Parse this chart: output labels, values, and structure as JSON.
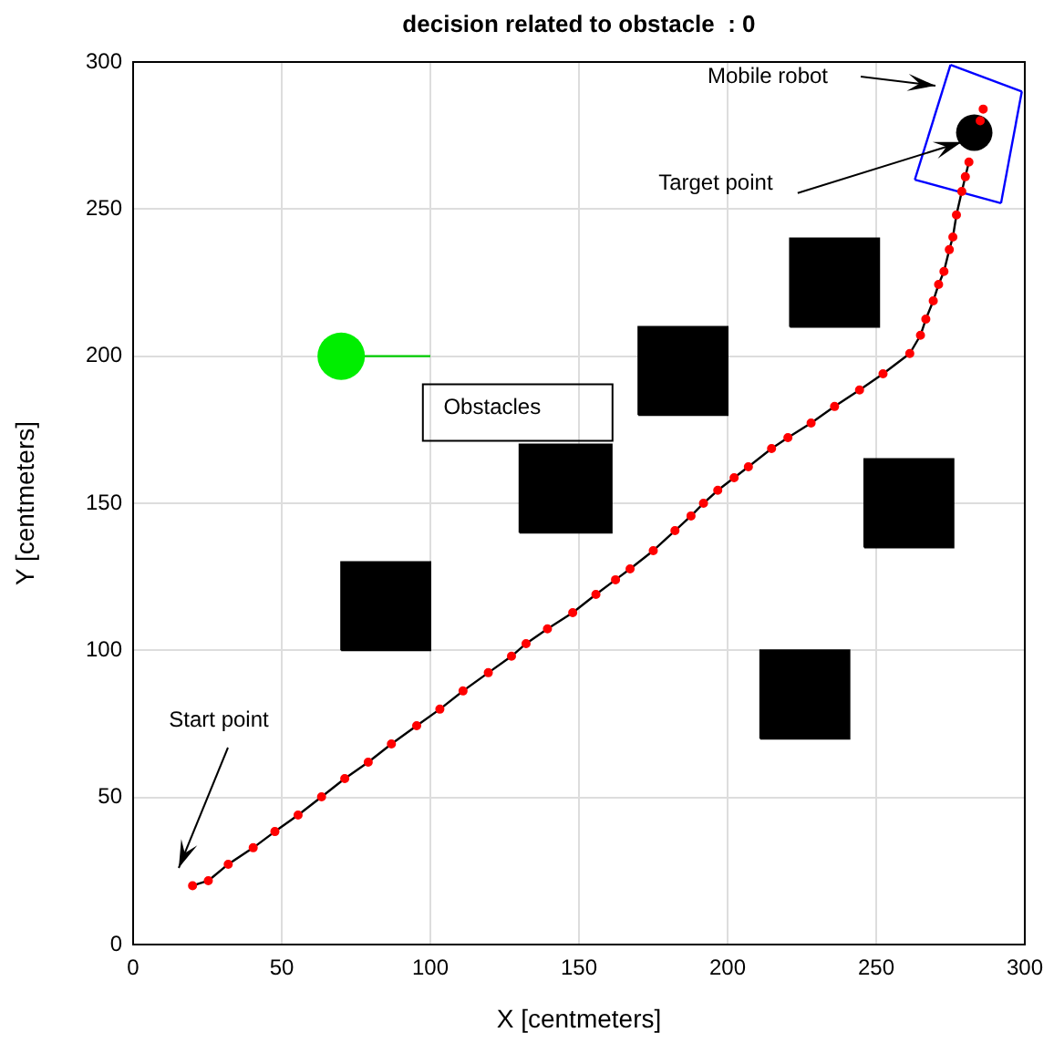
{
  "chart_data": {
    "type": "line",
    "title": "decision related to obstacle  : 0",
    "xlabel": "X [centmeters]",
    "ylabel": "Y [centmeters]",
    "xlim": [
      0,
      300
    ],
    "ylim": [
      0,
      300
    ],
    "xticks": [
      0,
      50,
      100,
      150,
      200,
      250,
      300
    ],
    "yticks": [
      0,
      50,
      100,
      150,
      200,
      250,
      300
    ],
    "grid": true,
    "legend": false,
    "series": [
      {
        "type": "area",
        "color": "#000000",
        "x": [
          70,
          100,
          100,
          70,
          70
        ],
        "values": [
          100,
          100,
          130,
          130,
          100
        ]
      },
      {
        "type": "area",
        "color": "#000000",
        "x": [
          130,
          161,
          161,
          130,
          130
        ],
        "values": [
          140,
          140,
          170,
          170,
          140
        ]
      },
      {
        "type": "area",
        "color": "#000000",
        "x": [
          170,
          200,
          200,
          170,
          170
        ],
        "values": [
          180,
          180,
          210,
          210,
          180
        ]
      },
      {
        "type": "area",
        "color": "#000000",
        "x": [
          221,
          251,
          251,
          221,
          221
        ],
        "values": [
          210,
          210,
          240,
          240,
          210
        ]
      },
      {
        "type": "area",
        "color": "#000000",
        "x": [
          246,
          276,
          276,
          246,
          246
        ],
        "values": [
          135,
          135,
          165,
          165,
          135
        ]
      },
      {
        "type": "area",
        "color": "#000000",
        "x": [
          211,
          241,
          241,
          211,
          211
        ],
        "values": [
          70,
          70,
          100,
          100,
          70
        ]
      },
      {
        "color": "#00cc00",
        "marker": "none",
        "x": [
          70,
          100
        ],
        "values": [
          200,
          200
        ]
      },
      {
        "type": "bubble",
        "color": "#00ee00",
        "x": [
          70
        ],
        "values": [
          200
        ],
        "sizes": [
          1
        ]
      },
      {
        "color": "#0000ff",
        "marker": "none",
        "x": [
          275,
          299
        ],
        "values": [
          299,
          290
        ]
      },
      {
        "color": "#0000ff",
        "marker": "none",
        "x": [
          292,
          299
        ],
        "values": [
          252,
          290
        ]
      },
      {
        "color": "#0000ff",
        "marker": "none",
        "x": [
          263,
          292
        ],
        "values": [
          260,
          252
        ]
      },
      {
        "color": "#0000ff",
        "marker": "none",
        "x": [
          263,
          275
        ],
        "values": [
          260,
          299
        ]
      },
      {
        "color": "#000000",
        "marker": "none",
        "x": [
          20,
          25.3,
          32,
          40.4,
          47.7,
          55.5,
          63.4,
          71.2,
          79.1,
          86.9,
          95.4,
          103.2,
          111,
          119.5,
          127.3,
          132.2,
          139.4,
          147.9,
          155.7,
          162.3,
          167.2,
          175,
          182.3,
          187.7,
          191.9,
          196.7,
          202.2,
          207,
          214.8,
          220.3,
          228.1,
          236,
          244.4,
          252.3,
          261.3,
          264.9,
          266.7,
          269.2,
          271,
          272.8,
          274.6,
          275.8,
          277,
          278.8,
          280,
          281.2
        ],
        "values": [
          20,
          21.7,
          27.3,
          32.9,
          38.4,
          44,
          50.2,
          56.4,
          62,
          68.2,
          74.4,
          80,
          86.2,
          92.4,
          98,
          102.3,
          107.3,
          112.8,
          119,
          124,
          127.7,
          133.9,
          140.7,
          145.7,
          150,
          154.4,
          158.7,
          162.4,
          168.6,
          172.3,
          177.3,
          182.9,
          188.5,
          194,
          200.9,
          207.1,
          212.6,
          218.8,
          224.4,
          228.8,
          236.2,
          240.5,
          248,
          256,
          261,
          266
        ]
      },
      {
        "type": "scatter",
        "color": "#ff0000",
        "marker": "circle",
        "x": [
          20,
          25.3,
          32,
          40.4,
          47.7,
          55.5,
          63.4,
          71.2,
          79.1,
          86.9,
          95.4,
          103.2,
          111,
          119.5,
          127.3,
          132.2,
          139.4,
          147.9,
          155.7,
          162.3,
          167.2,
          175,
          182.3,
          187.7,
          191.9,
          196.7,
          202.2,
          207,
          214.8,
          220.3,
          228.1,
          236,
          244.4,
          252.3,
          261.3,
          264.9,
          266.7,
          269.2,
          271,
          272.8,
          274.6,
          275.8,
          277,
          278.8,
          280,
          281.2
        ],
        "values": [
          20,
          21.7,
          27.3,
          32.9,
          38.4,
          44,
          50.2,
          56.4,
          62,
          68.2,
          74.4,
          80,
          86.2,
          92.4,
          98,
          102.3,
          107.3,
          112.8,
          119,
          124,
          127.7,
          133.9,
          140.7,
          145.7,
          150,
          154.4,
          158.7,
          162.4,
          168.6,
          172.3,
          177.3,
          182.9,
          188.5,
          194,
          200.9,
          207.1,
          212.6,
          218.8,
          224.4,
          228.8,
          236.2,
          240.5,
          248,
          256,
          261,
          266
        ]
      },
      {
        "type": "bubble",
        "color": "#000000",
        "x": [
          283
        ],
        "values": [
          276
        ],
        "sizes": [
          0.59
        ]
      },
      {
        "type": "scatter",
        "color": "#ff0000",
        "marker": "circle",
        "x": [
          286,
          285
        ],
        "values": [
          284,
          280
        ]
      }
    ],
    "annotations": [
      "Mobile robot",
      {
        "text": "Target point",
        "x": 278.8,
        "y": 272.8
      },
      "Start point",
      {
        "text": "Obstacles",
        "x": 130,
        "y": 170
      }
    ]
  }
}
